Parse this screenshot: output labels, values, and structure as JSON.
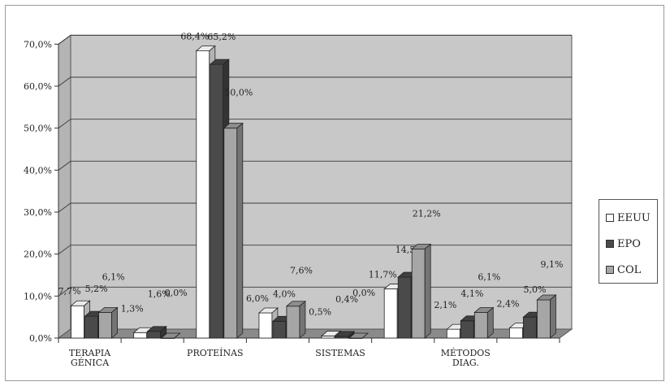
{
  "chart_data": {
    "type": "bar",
    "categories": [
      "TERAPIA GÉNICA",
      "",
      "PROTEÍNAS",
      "",
      "SISTEMAS",
      "",
      "MÉTODOS DIAG.",
      ""
    ],
    "category_lines": [
      [
        "TERAPIA",
        "GÉNICA"
      ],
      [],
      [
        "PROTEÍNAS"
      ],
      [],
      [
        "SISTEMAS"
      ],
      [],
      [
        "MÉTODOS",
        "DIAG."
      ],
      []
    ],
    "series": [
      {
        "name": "EEUU",
        "color": "#ffffff",
        "values": [
          7.7,
          1.3,
          68.4,
          6.0,
          0.5,
          11.7,
          2.1,
          2.4
        ],
        "labels": [
          "7,7%",
          "1,3%",
          "68,4%",
          "6,0%",
          "0,5%",
          "11,7%",
          "2,1%",
          "2,4%"
        ]
      },
      {
        "name": "EPO",
        "color": "#4a4a4a",
        "values": [
          5.2,
          1.6,
          65.2,
          4.0,
          0.4,
          14.5,
          4.1,
          5.0
        ],
        "labels": [
          "5,2%",
          "1,6%",
          "65,2%",
          "4,0%",
          "0,4%",
          "14,5%",
          "4,1%",
          "5,0%"
        ]
      },
      {
        "name": "COL",
        "color": "#a6a6a6",
        "values": [
          6.1,
          0.0,
          50.0,
          7.6,
          0.0,
          21.2,
          6.1,
          9.1
        ],
        "labels": [
          "6,1%",
          "0,0%",
          "50,0%",
          "7,6%",
          "0,0%",
          "21,2%",
          "6,1%",
          "9,1%"
        ]
      }
    ],
    "yticks": [
      "0,0%",
      "10,0%",
      "20,0%",
      "30,0%",
      "40,0%",
      "50,0%",
      "60,0%",
      "70,0%"
    ],
    "ylim": [
      0,
      70
    ],
    "grid": true,
    "legend_position": "right",
    "colors": {
      "wall": "#c8c8c8",
      "floor": "#8a8a8a",
      "grid": "#3a3a3a"
    }
  }
}
